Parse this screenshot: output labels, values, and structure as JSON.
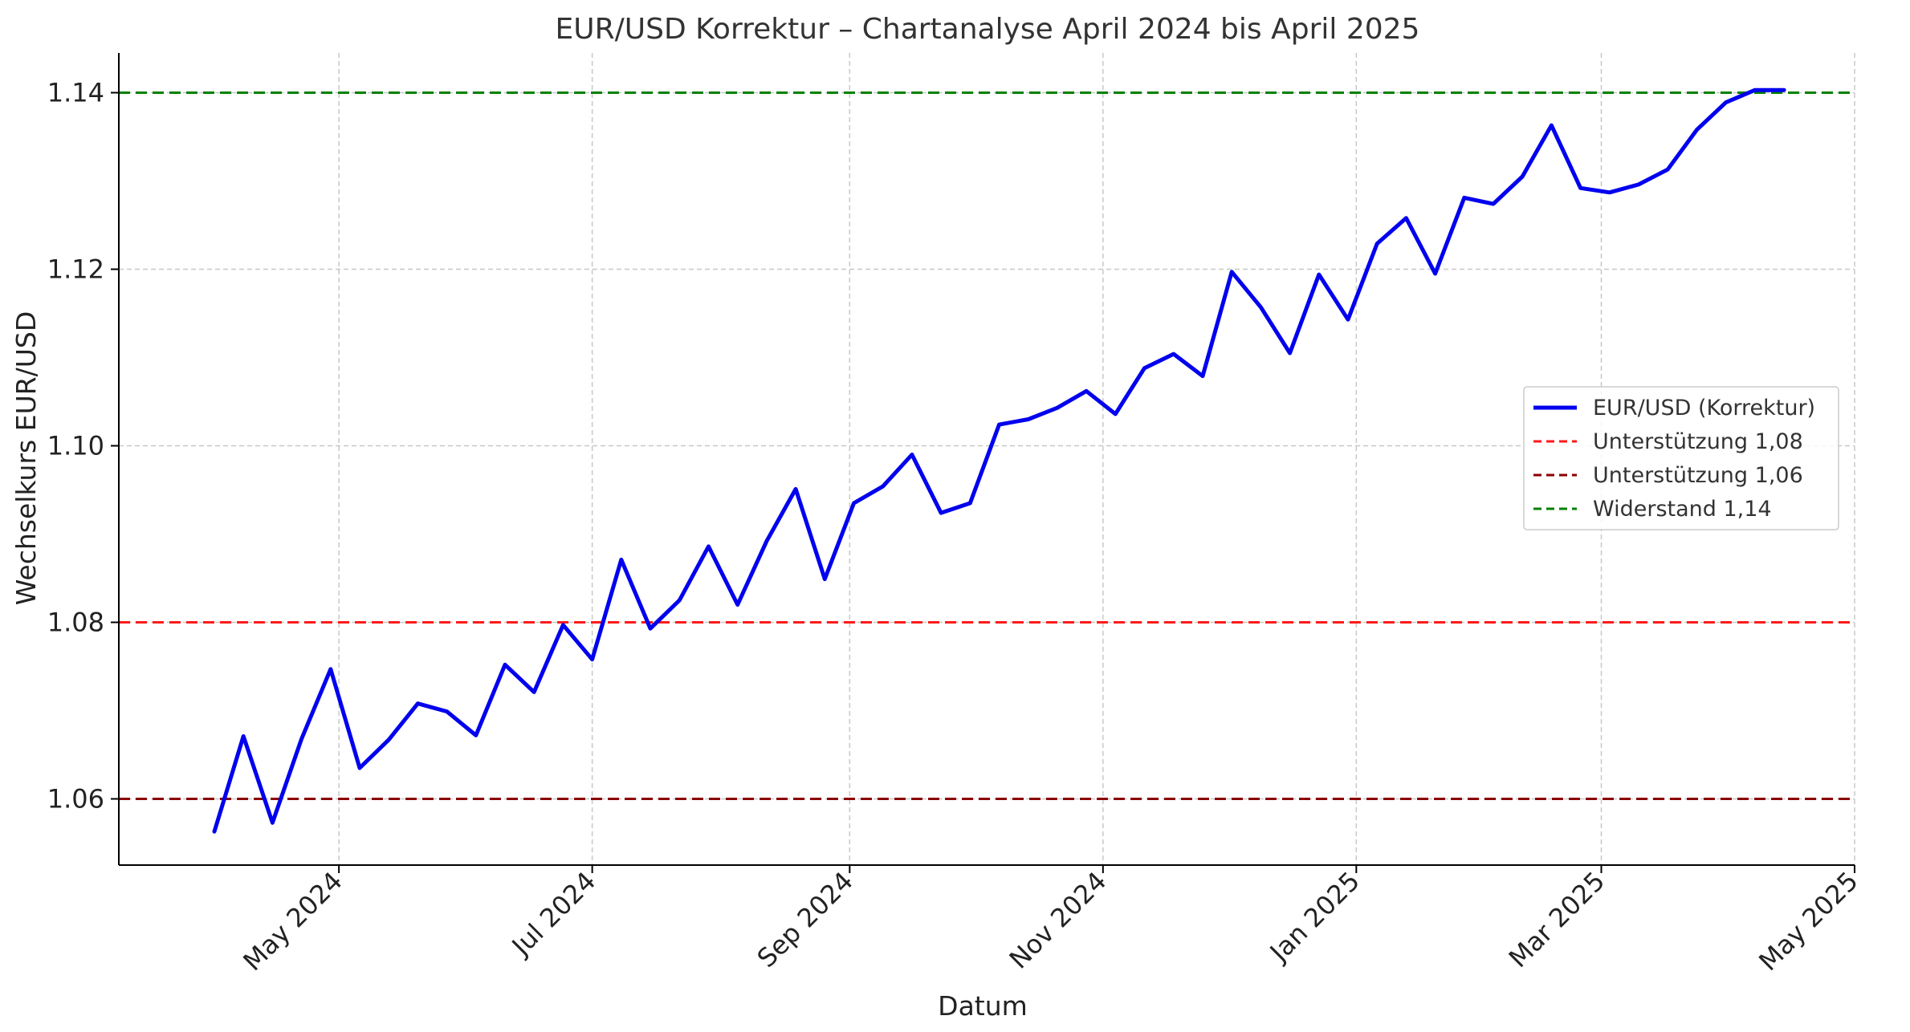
{
  "chart_data": {
    "type": "line",
    "title": "EUR/USD Korrektur – Chartanalyse April 2024 bis April 2025",
    "xlabel": "Datum",
    "ylabel": "Wechselkurs EUR/USD",
    "ylim": [
      1.0525,
      1.1445
    ],
    "xlim": [
      "2024-03-09",
      "2025-05-01"
    ],
    "grid": true,
    "legend_position": "center-right",
    "y_ticks": [
      {
        "value": 1.06,
        "label": "1.06"
      },
      {
        "value": 1.08,
        "label": "1.08"
      },
      {
        "value": 1.1,
        "label": "1.10"
      },
      {
        "value": 1.12,
        "label": "1.12"
      },
      {
        "value": 1.14,
        "label": "1.14"
      }
    ],
    "x_ticks": [
      {
        "date": "2024-05-01",
        "label": "May 2024"
      },
      {
        "date": "2024-07-01",
        "label": "Jul 2024"
      },
      {
        "date": "2024-09-01",
        "label": "Sep 2024"
      },
      {
        "date": "2024-11-01",
        "label": "Nov 2024"
      },
      {
        "date": "2025-01-01",
        "label": "Jan 2025"
      },
      {
        "date": "2025-03-01",
        "label": "Mar 2025"
      },
      {
        "date": "2025-05-01",
        "label": "May 2025"
      }
    ],
    "series": [
      {
        "name": "EUR/USD (Korrektur)",
        "color": "#0000ee",
        "style": "solid",
        "x": [
          "2024-04-01",
          "2024-04-08",
          "2024-04-15",
          "2024-04-22",
          "2024-04-29",
          "2024-05-06",
          "2024-05-13",
          "2024-05-20",
          "2024-05-27",
          "2024-06-03",
          "2024-06-10",
          "2024-06-17",
          "2024-06-24",
          "2024-07-01",
          "2024-07-08",
          "2024-07-15",
          "2024-07-22",
          "2024-07-29",
          "2024-08-05",
          "2024-08-12",
          "2024-08-19",
          "2024-08-26",
          "2024-09-02",
          "2024-09-09",
          "2024-09-16",
          "2024-09-23",
          "2024-09-30",
          "2024-10-07",
          "2024-10-14",
          "2024-10-21",
          "2024-10-28",
          "2024-11-04",
          "2024-11-11",
          "2024-11-18",
          "2024-11-25",
          "2024-12-02",
          "2024-12-09",
          "2024-12-16",
          "2024-12-23",
          "2024-12-30",
          "2025-01-06",
          "2025-01-13",
          "2025-01-20",
          "2025-01-27",
          "2025-02-03",
          "2025-02-10",
          "2025-02-17",
          "2025-02-24",
          "2025-03-03",
          "2025-03-10",
          "2025-03-17",
          "2025-03-24",
          "2025-03-31",
          "2025-04-07",
          "2025-04-14"
        ],
        "values": [
          1.0563,
          1.0671,
          1.0573,
          1.0668,
          1.0747,
          1.0635,
          1.0667,
          1.0708,
          1.0699,
          1.0672,
          1.0752,
          1.0721,
          1.0797,
          1.0758,
          1.0871,
          1.0793,
          1.0825,
          1.0886,
          1.082,
          1.0892,
          1.0951,
          1.0849,
          1.0935,
          1.0954,
          1.099,
          1.0924,
          1.0935,
          1.1024,
          1.103,
          1.1043,
          1.1062,
          1.1036,
          1.1088,
          1.1104,
          1.1079,
          1.1197,
          1.1157,
          1.1105,
          1.1194,
          1.1143,
          1.1229,
          1.1258,
          1.1195,
          1.1281,
          1.1274,
          1.1305,
          1.1363,
          1.1292,
          1.1287,
          1.1296,
          1.1313,
          1.1358,
          1.1389,
          1.1403,
          1.1403
        ]
      },
      {
        "name": "Unterstützung 1,08",
        "color": "#ff1a1a",
        "style": "dashed",
        "y": 1.08
      },
      {
        "name": "Unterstützung 1,06",
        "color": "#8b0000",
        "style": "dashed",
        "y": 1.06
      },
      {
        "name": "Widerstand 1,14",
        "color": "#008000",
        "style": "dashed",
        "y": 1.14
      }
    ]
  }
}
